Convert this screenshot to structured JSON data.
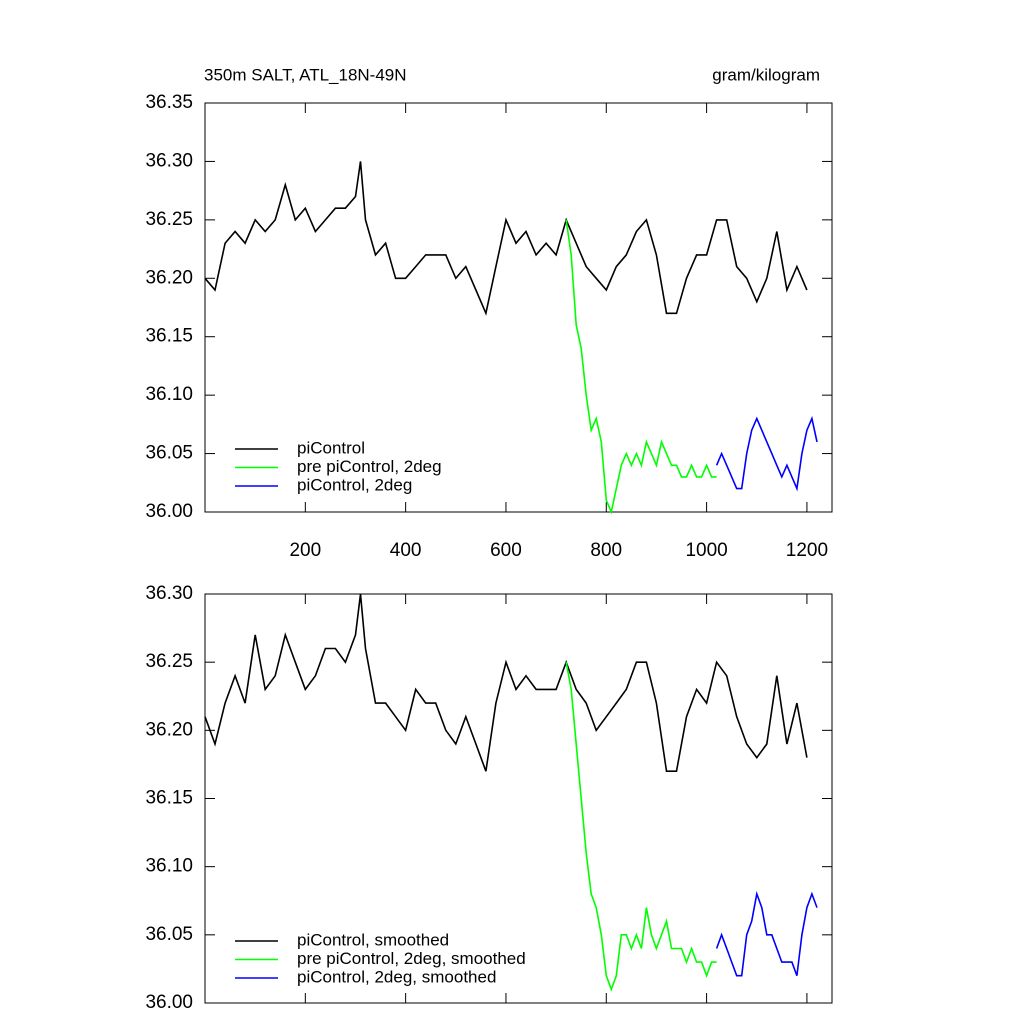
{
  "chart_data": [
    {
      "type": "line",
      "title": "350m SALT, ATL_18N-49N",
      "units": "gram/kilogram",
      "xlim": [
        0,
        1250
      ],
      "ylim": [
        36.0,
        36.35
      ],
      "xticks": [
        200,
        400,
        600,
        800,
        1000,
        1200
      ],
      "yticks": [
        {
          "value": 36.0,
          "label": "36.00"
        },
        36.05,
        {
          "value": 36.1,
          "label": "36.10"
        },
        36.15,
        {
          "value": 36.2,
          "label": "36.20"
        },
        36.25,
        {
          "value": 36.3,
          "label": "36.30"
        },
        36.35
      ],
      "series": [
        {
          "name": "piControl",
          "color": "#000000",
          "x": [
            0,
            20,
            40,
            60,
            80,
            100,
            120,
            140,
            160,
            180,
            200,
            220,
            240,
            260,
            280,
            300,
            310,
            320,
            340,
            360,
            380,
            400,
            420,
            440,
            460,
            480,
            500,
            520,
            540,
            560,
            580,
            600,
            620,
            640,
            660,
            680,
            700,
            720,
            740,
            760,
            780,
            800,
            820,
            840,
            860,
            880,
            900,
            920,
            940,
            960,
            980,
            1000,
            1020,
            1040,
            1060,
            1080,
            1100,
            1120,
            1140,
            1160,
            1180,
            1200
          ],
          "values": [
            36.2,
            36.19,
            36.23,
            36.24,
            36.23,
            36.25,
            36.24,
            36.25,
            36.28,
            36.25,
            36.26,
            36.24,
            36.25,
            36.26,
            36.26,
            36.27,
            36.3,
            36.25,
            36.22,
            36.23,
            36.2,
            36.2,
            36.21,
            36.22,
            36.22,
            36.22,
            36.2,
            36.21,
            36.19,
            36.17,
            36.21,
            36.25,
            36.23,
            36.24,
            36.22,
            36.23,
            36.22,
            36.25,
            36.23,
            36.21,
            36.2,
            36.19,
            36.21,
            36.22,
            36.24,
            36.25,
            36.22,
            36.17,
            36.17,
            36.2,
            36.22,
            36.22,
            36.25,
            36.25,
            36.21,
            36.2,
            36.18,
            36.2,
            36.24,
            36.19,
            36.21,
            36.19
          ]
        },
        {
          "name": "pre piControl, 2deg",
          "color": "#00ff00",
          "x": [
            720,
            730,
            740,
            750,
            760,
            770,
            780,
            790,
            800,
            810,
            820,
            830,
            840,
            850,
            860,
            870,
            880,
            890,
            900,
            910,
            920,
            930,
            940,
            950,
            960,
            970,
            980,
            990,
            1000,
            1010,
            1020
          ],
          "values": [
            36.25,
            36.22,
            36.16,
            36.14,
            36.1,
            36.07,
            36.08,
            36.06,
            36.01,
            36.0,
            36.02,
            36.04,
            36.05,
            36.04,
            36.05,
            36.04,
            36.06,
            36.05,
            36.04,
            36.06,
            36.05,
            36.04,
            36.04,
            36.03,
            36.03,
            36.04,
            36.03,
            36.03,
            36.04,
            36.03,
            36.03
          ]
        },
        {
          "name": "piControl, 2deg",
          "color": "#0000ff",
          "x": [
            1020,
            1030,
            1040,
            1050,
            1060,
            1070,
            1080,
            1090,
            1100,
            1110,
            1120,
            1130,
            1140,
            1150,
            1160,
            1170,
            1180,
            1190,
            1200,
            1210,
            1220
          ],
          "values": [
            36.04,
            36.05,
            36.04,
            36.03,
            36.02,
            36.02,
            36.05,
            36.07,
            36.08,
            36.07,
            36.06,
            36.05,
            36.04,
            36.03,
            36.04,
            36.03,
            36.02,
            36.05,
            36.07,
            36.08,
            36.06
          ]
        }
      ]
    },
    {
      "type": "line",
      "xlim": [
        0,
        1250
      ],
      "ylim": [
        36.0,
        36.3
      ],
      "xticks": [
        200,
        400,
        600,
        800,
        1000,
        1200
      ],
      "yticks": [
        {
          "value": 36.0,
          "label": "36.00"
        },
        36.05,
        {
          "value": 36.1,
          "label": "36.10"
        },
        36.15,
        {
          "value": 36.2,
          "label": "36.20"
        },
        36.25,
        {
          "value": 36.3,
          "label": "36.30"
        }
      ],
      "series": [
        {
          "name": "piControl, smoothed",
          "color": "#000000",
          "x": [
            0,
            20,
            40,
            60,
            80,
            100,
            120,
            140,
            160,
            180,
            200,
            220,
            240,
            260,
            280,
            300,
            310,
            320,
            340,
            360,
            380,
            400,
            420,
            440,
            460,
            480,
            500,
            520,
            540,
            560,
            580,
            600,
            620,
            640,
            660,
            680,
            700,
            720,
            740,
            760,
            780,
            800,
            820,
            840,
            860,
            880,
            900,
            920,
            940,
            960,
            980,
            1000,
            1020,
            1040,
            1060,
            1080,
            1100,
            1120,
            1140,
            1160,
            1180,
            1200
          ],
          "values": [
            36.21,
            36.19,
            36.22,
            36.24,
            36.22,
            36.27,
            36.23,
            36.24,
            36.27,
            36.25,
            36.23,
            36.24,
            36.26,
            36.26,
            36.25,
            36.27,
            36.3,
            36.26,
            36.22,
            36.22,
            36.21,
            36.2,
            36.23,
            36.22,
            36.22,
            36.2,
            36.19,
            36.21,
            36.19,
            36.17,
            36.22,
            36.25,
            36.23,
            36.24,
            36.23,
            36.23,
            36.23,
            36.25,
            36.23,
            36.22,
            36.2,
            36.21,
            36.22,
            36.23,
            36.25,
            36.25,
            36.22,
            36.17,
            36.17,
            36.21,
            36.23,
            36.22,
            36.25,
            36.24,
            36.21,
            36.19,
            36.18,
            36.19,
            36.24,
            36.19,
            36.22,
            36.18
          ]
        },
        {
          "name": "pre piControl, 2deg, smoothed",
          "color": "#00ff00",
          "x": [
            720,
            730,
            740,
            750,
            760,
            770,
            780,
            790,
            800,
            810,
            820,
            830,
            840,
            850,
            860,
            870,
            880,
            890,
            900,
            910,
            920,
            930,
            940,
            950,
            960,
            970,
            980,
            990,
            1000,
            1010,
            1020
          ],
          "values": [
            36.25,
            36.23,
            36.19,
            36.15,
            36.11,
            36.08,
            36.07,
            36.05,
            36.02,
            36.01,
            36.02,
            36.05,
            36.05,
            36.04,
            36.05,
            36.04,
            36.07,
            36.05,
            36.04,
            36.05,
            36.06,
            36.04,
            36.04,
            36.04,
            36.03,
            36.04,
            36.03,
            36.03,
            36.02,
            36.03,
            36.03
          ]
        },
        {
          "name": "piControl, 2deg, smoothed",
          "color": "#0000ff",
          "x": [
            1020,
            1030,
            1040,
            1050,
            1060,
            1070,
            1080,
            1090,
            1100,
            1110,
            1120,
            1130,
            1140,
            1150,
            1160,
            1170,
            1180,
            1190,
            1200,
            1210,
            1220
          ],
          "values": [
            36.04,
            36.05,
            36.04,
            36.03,
            36.02,
            36.02,
            36.05,
            36.06,
            36.08,
            36.07,
            36.05,
            36.05,
            36.04,
            36.03,
            36.03,
            36.03,
            36.02,
            36.05,
            36.07,
            36.08,
            36.07
          ]
        }
      ]
    }
  ]
}
